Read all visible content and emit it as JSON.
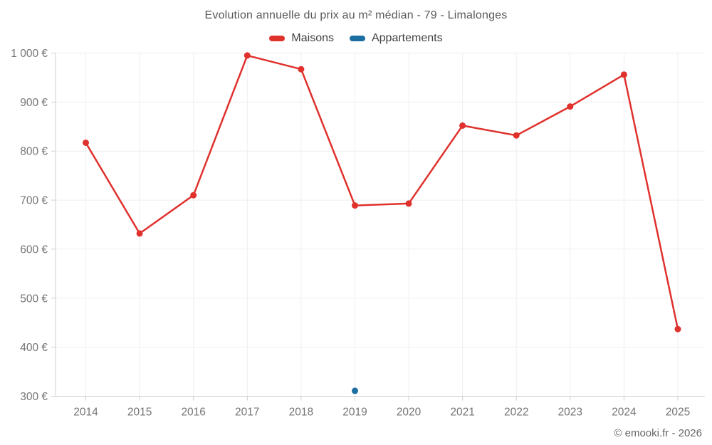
{
  "footer": {
    "copyright": "© emooki.fr - 2026"
  },
  "chart_data": {
    "type": "line",
    "title": "Evolution annuelle du prix au m² médian - 79 - Limalonges",
    "categories": [
      "2014",
      "2015",
      "2016",
      "2017",
      "2018",
      "2019",
      "2020",
      "2021",
      "2022",
      "2023",
      "2024",
      "2025"
    ],
    "series": [
      {
        "name": "Maisons",
        "color": "#e0312d",
        "values": [
          817,
          632,
          710,
          995,
          967,
          689,
          693,
          852,
          832,
          891,
          956,
          437
        ]
      },
      {
        "name": "Appartements",
        "color": "#1c6ea0",
        "values": [
          null,
          null,
          null,
          null,
          null,
          311,
          null,
          null,
          null,
          null,
          null,
          null
        ]
      }
    ],
    "ylabel": "",
    "xlabel": "",
    "ylim": [
      300,
      1000
    ],
    "yticks": [
      {
        "value": 300,
        "label": "300 €"
      },
      {
        "value": 400,
        "label": "400 €"
      },
      {
        "value": 500,
        "label": "500 €"
      },
      {
        "value": 600,
        "label": "600 €"
      },
      {
        "value": 700,
        "label": "700 €"
      },
      {
        "value": 800,
        "label": "800 €"
      },
      {
        "value": 900,
        "label": "900 €"
      },
      {
        "value": 1000,
        "label": "1 000 €"
      }
    ],
    "grid": true,
    "legend_position": "top",
    "colors": {
      "grid": "#efefef",
      "axis": "#cfcfcf",
      "tick_label": "#757575"
    }
  }
}
